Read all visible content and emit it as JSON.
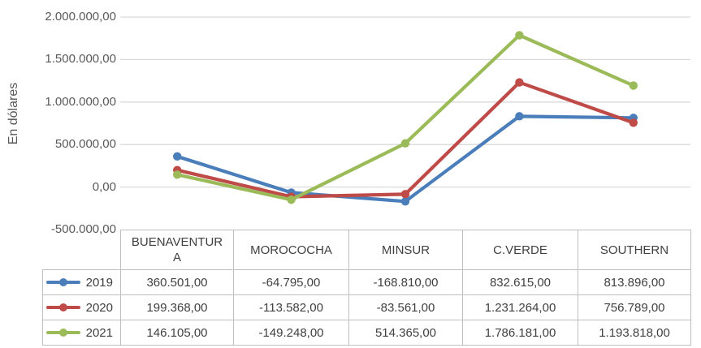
{
  "chart_data": {
    "type": "line",
    "title": "",
    "xlabel": "",
    "ylabel": "En dólares",
    "categories": [
      "BUENAVENTURA",
      "MOROCOCHA",
      "MINSUR",
      "C.VERDE",
      "SOUTHERN"
    ],
    "series": [
      {
        "name": "2019",
        "color": "#4A7EBB",
        "values": [
          360501,
          -64795,
          -168810,
          832615,
          813896
        ],
        "labels": [
          "360.501,00",
          "-64.795,00",
          "-168.810,00",
          "832.615,00",
          "813.896,00"
        ]
      },
      {
        "name": "2020",
        "color": "#BE4B48",
        "values": [
          199368,
          -113582,
          -83561,
          1231264,
          756789
        ],
        "labels": [
          "199.368,00",
          "-113.582,00",
          "-83.561,00",
          "1.231.264,00",
          "756.789,00"
        ]
      },
      {
        "name": "2021",
        "color": "#9BBB59",
        "values": [
          146105,
          -149248,
          514365,
          1786181,
          1193818
        ],
        "labels": [
          "146.105,00",
          "-149.248,00",
          "514.365,00",
          "1.786.181,00",
          "1.193.818,00"
        ]
      }
    ],
    "ylim": [
      -500000,
      2000000
    ],
    "ytick_values": [
      2000000,
      1500000,
      1000000,
      500000,
      0,
      -500000
    ],
    "ytick_labels": [
      "2.000.000,00",
      "1.500.000,00",
      "1.000.000,00",
      "500.000,00",
      "0,00",
      "-500.000,00"
    ],
    "grid": true,
    "gridline_color": "#D9D9D9",
    "legend_position": "data-table-left-column",
    "marker": "circle"
  }
}
